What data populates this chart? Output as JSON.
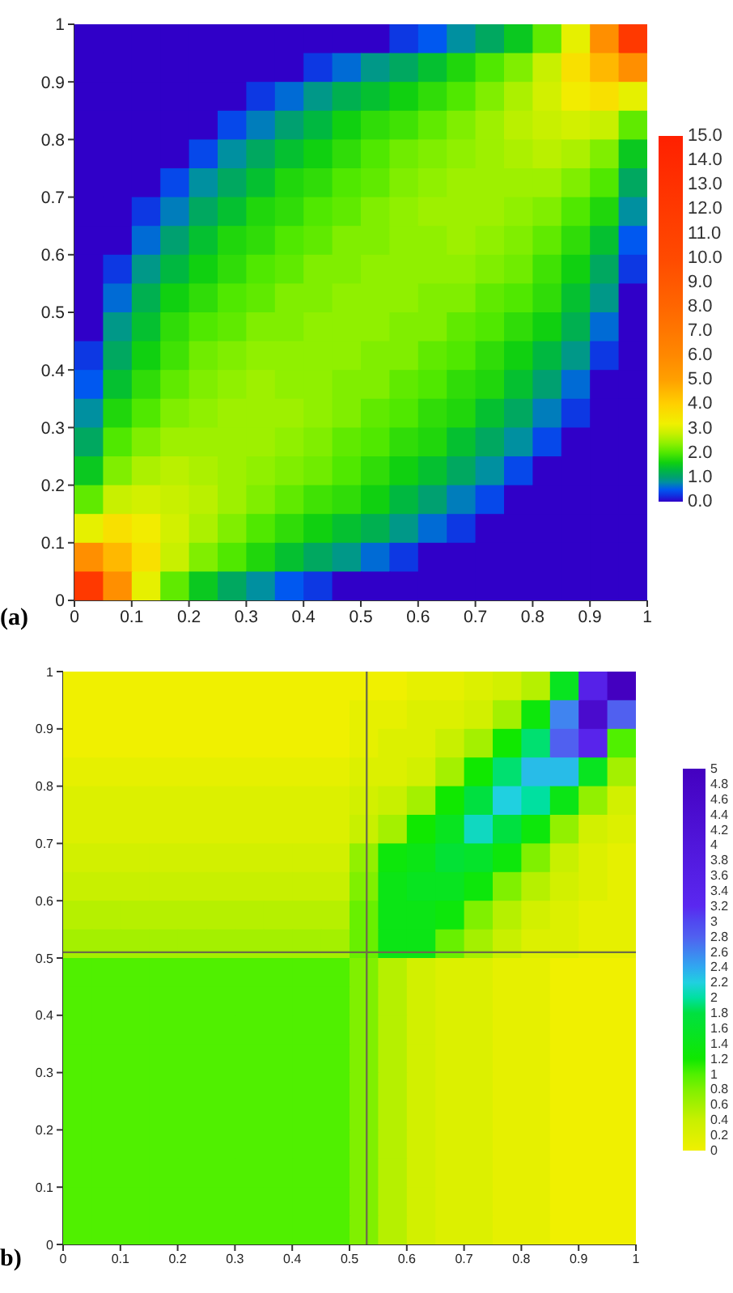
{
  "chart_data": [
    {
      "type": "heatmap",
      "annotations": [
        "(a)"
      ],
      "xlim": [
        0,
        1
      ],
      "ylim": [
        0,
        1
      ],
      "xticks": [
        0,
        0.1,
        0.2,
        0.3,
        0.4,
        0.5,
        0.6,
        0.7,
        0.8,
        0.9,
        1
      ],
      "yticks": [
        0,
        0.1,
        0.2,
        0.3,
        0.4,
        0.5,
        0.6,
        0.7,
        0.8,
        0.9,
        1
      ],
      "clim": [
        0,
        15
      ],
      "cticks": [
        {
          "value": 0,
          "label": "0.0"
        },
        {
          "value": 1,
          "label": "1.0"
        },
        {
          "value": 2,
          "label": "2.0"
        },
        {
          "value": 3,
          "label": "3.0"
        },
        {
          "value": 4,
          "label": "4.0"
        },
        {
          "value": 5,
          "label": "5.0"
        },
        {
          "value": 6,
          "label": "6.0"
        },
        {
          "value": 7,
          "label": "7.0"
        },
        {
          "value": 8,
          "label": "8.0"
        },
        {
          "value": 9,
          "label": "9.0"
        },
        {
          "value": 10,
          "label": "10.0"
        },
        {
          "value": 11,
          "label": "11.0"
        },
        {
          "value": 12,
          "label": "12.0"
        },
        {
          "value": 13,
          "label": "13.0"
        },
        {
          "value": 14,
          "label": "14.0"
        },
        {
          "value": 15,
          "label": "15.0"
        }
      ],
      "cells": [
        [
          0,
          0,
          0,
          0,
          0,
          0,
          0,
          0,
          0,
          0,
          0,
          0.3,
          0.5,
          0.8,
          1.1,
          1.5,
          2.1,
          3.1,
          5.7,
          12
        ],
        [
          0,
          0,
          0,
          0,
          0,
          0,
          0,
          0,
          0.3,
          0.6,
          0.9,
          1.1,
          1.4,
          1.7,
          2.0,
          2.3,
          2.8,
          3.6,
          4.5,
          5.7
        ],
        [
          0,
          0,
          0,
          0,
          0,
          0,
          0.3,
          0.6,
          0.9,
          1.2,
          1.4,
          1.6,
          1.8,
          2.0,
          2.3,
          2.6,
          2.9,
          3.3,
          3.6,
          3.1
        ],
        [
          0,
          0,
          0,
          0,
          0,
          0.4,
          0.7,
          1.0,
          1.3,
          1.6,
          1.8,
          1.9,
          2.1,
          2.3,
          2.5,
          2.7,
          2.8,
          2.9,
          2.8,
          2.1
        ],
        [
          0,
          0,
          0,
          0,
          0.4,
          0.8,
          1.1,
          1.4,
          1.6,
          1.8,
          2.0,
          2.2,
          2.3,
          2.4,
          2.5,
          2.6,
          2.7,
          2.6,
          2.3,
          1.5
        ],
        [
          0,
          0,
          0,
          0.4,
          0.8,
          1.1,
          1.4,
          1.7,
          1.8,
          2.0,
          2.1,
          2.3,
          2.4,
          2.5,
          2.5,
          2.5,
          2.5,
          2.3,
          2.0,
          1.1
        ],
        [
          0,
          0,
          0.3,
          0.7,
          1.1,
          1.4,
          1.7,
          1.8,
          2.0,
          2.1,
          2.3,
          2.4,
          2.5,
          2.5,
          2.5,
          2.4,
          2.3,
          2.0,
          1.7,
          0.8
        ],
        [
          0,
          0,
          0.6,
          1.0,
          1.4,
          1.7,
          1.8,
          2.0,
          2.1,
          2.3,
          2.3,
          2.4,
          2.4,
          2.5,
          2.4,
          2.3,
          2.1,
          1.8,
          1.4,
          0.5
        ],
        [
          0,
          0.3,
          0.9,
          1.3,
          1.6,
          1.8,
          2.0,
          2.1,
          2.3,
          2.3,
          2.4,
          2.4,
          2.4,
          2.4,
          2.3,
          2.2,
          1.9,
          1.6,
          1.1,
          0.3
        ],
        [
          0,
          0.6,
          1.2,
          1.6,
          1.8,
          2.0,
          2.1,
          2.3,
          2.3,
          2.4,
          2.4,
          2.4,
          2.3,
          2.3,
          2.1,
          2.0,
          1.8,
          1.4,
          0.9,
          0
        ],
        [
          0,
          0.9,
          1.4,
          1.8,
          2.0,
          2.1,
          2.3,
          2.3,
          2.4,
          2.4,
          2.4,
          2.3,
          2.3,
          2.1,
          2.0,
          1.8,
          1.6,
          1.2,
          0.6,
          0
        ],
        [
          0.3,
          1.1,
          1.6,
          1.9,
          2.2,
          2.3,
          2.4,
          2.4,
          2.4,
          2.4,
          2.3,
          2.3,
          2.1,
          2.0,
          1.8,
          1.6,
          1.3,
          0.9,
          0.3,
          0
        ],
        [
          0.5,
          1.4,
          1.8,
          2.1,
          2.3,
          2.4,
          2.5,
          2.4,
          2.4,
          2.3,
          2.3,
          2.1,
          2.0,
          1.8,
          1.7,
          1.4,
          1.0,
          0.6,
          0,
          0
        ],
        [
          0.8,
          1.7,
          2.0,
          2.3,
          2.4,
          2.5,
          2.5,
          2.5,
          2.4,
          2.3,
          2.1,
          2.0,
          1.8,
          1.7,
          1.4,
          1.1,
          0.7,
          0.3,
          0,
          0
        ],
        [
          1.1,
          2.0,
          2.3,
          2.5,
          2.5,
          2.5,
          2.5,
          2.4,
          2.3,
          2.1,
          2.0,
          1.8,
          1.7,
          1.4,
          1.1,
          0.8,
          0.4,
          0,
          0,
          0
        ],
        [
          1.5,
          2.3,
          2.6,
          2.7,
          2.6,
          2.5,
          2.4,
          2.3,
          2.2,
          2.0,
          1.8,
          1.6,
          1.4,
          1.1,
          0.8,
          0.4,
          0,
          0,
          0,
          0
        ],
        [
          2.1,
          2.8,
          2.9,
          2.8,
          2.7,
          2.5,
          2.3,
          2.1,
          1.9,
          1.8,
          1.6,
          1.3,
          1.0,
          0.7,
          0.4,
          0,
          0,
          0,
          0,
          0
        ],
        [
          3.1,
          3.6,
          3.3,
          2.9,
          2.6,
          2.3,
          2.0,
          1.8,
          1.6,
          1.4,
          1.2,
          0.9,
          0.6,
          0.3,
          0,
          0,
          0,
          0,
          0,
          0
        ],
        [
          5.7,
          4.5,
          3.6,
          2.8,
          2.3,
          2.0,
          1.7,
          1.4,
          1.1,
          0.9,
          0.6,
          0.3,
          0,
          0,
          0,
          0,
          0,
          0,
          0,
          0
        ],
        [
          12,
          5.7,
          3.1,
          2.1,
          1.5,
          1.1,
          0.8,
          0.5,
          0.3,
          0,
          0,
          0,
          0,
          0,
          0,
          0,
          0,
          0,
          0,
          0
        ]
      ]
    },
    {
      "type": "heatmap",
      "annotations": [
        "b)"
      ],
      "xlim": [
        0,
        1
      ],
      "ylim": [
        0,
        1
      ],
      "xticks": [
        0,
        0.1,
        0.2,
        0.3,
        0.4,
        0.5,
        0.6,
        0.7,
        0.8,
        0.9,
        1
      ],
      "yticks": [
        0,
        0.1,
        0.2,
        0.3,
        0.4,
        0.5,
        0.6,
        0.7,
        0.8,
        0.9,
        1
      ],
      "clim": [
        0,
        5
      ],
      "cticks": [
        0,
        0.2,
        0.4,
        0.6,
        0.8,
        1,
        1.2,
        1.4,
        1.6,
        1.8,
        2,
        2.2,
        2.4,
        2.6,
        2.8,
        3,
        3.2,
        3.4,
        3.6,
        3.8,
        4,
        4.2,
        4.4,
        4.6,
        4.8,
        5
      ],
      "ref_lines": [
        {
          "axis": "x",
          "value": 0.53,
          "color": "#6e6e48"
        },
        {
          "axis": "y",
          "value": 0.51,
          "color": "#6e6e48"
        }
      ],
      "cells": [
        [
          0,
          0,
          0,
          0,
          0,
          0,
          0,
          0,
          0,
          0,
          0,
          0,
          0.1,
          0.1,
          0.2,
          0.3,
          0.5,
          1.5,
          3.5,
          5
        ],
        [
          0,
          0,
          0,
          0,
          0,
          0,
          0,
          0,
          0,
          0,
          0.1,
          0.1,
          0.2,
          0.2,
          0.3,
          0.6,
          1.3,
          2.6,
          4.5,
          2.8
        ],
        [
          0,
          0,
          0,
          0,
          0,
          0,
          0,
          0,
          0,
          0,
          0.1,
          0.2,
          0.2,
          0.4,
          0.6,
          1.2,
          1.9,
          2.8,
          3.4,
          1
        ],
        [
          0.1,
          0.1,
          0.1,
          0.1,
          0.1,
          0.1,
          0.1,
          0.1,
          0.1,
          0.1,
          0.2,
          0.2,
          0.3,
          0.6,
          1.2,
          1.9,
          2.3,
          2.3,
          1.5,
          0.6
        ],
        [
          0.2,
          0.2,
          0.2,
          0.2,
          0.2,
          0.2,
          0.2,
          0.2,
          0.2,
          0.2,
          0.3,
          0.4,
          0.6,
          1.2,
          1.8,
          2.2,
          2,
          1.4,
          0.7,
          0.3
        ],
        [
          0.2,
          0.2,
          0.2,
          0.2,
          0.2,
          0.2,
          0.2,
          0.2,
          0.2,
          0.2,
          0.4,
          0.6,
          1.2,
          1.5,
          2.1,
          1.8,
          1.3,
          0.7,
          0.3,
          0.2
        ],
        [
          0.3,
          0.3,
          0.3,
          0.3,
          0.3,
          0.3,
          0.3,
          0.3,
          0.3,
          0.3,
          0.7,
          1.3,
          1.4,
          1.7,
          1.6,
          1.3,
          0.8,
          0.4,
          0.2,
          0.1
        ],
        [
          0.4,
          0.4,
          0.4,
          0.4,
          0.4,
          0.4,
          0.4,
          0.4,
          0.4,
          0.4,
          0.8,
          1.4,
          1.5,
          1.5,
          1.3,
          0.8,
          0.5,
          0.3,
          0.2,
          0.1
        ],
        [
          0.5,
          0.5,
          0.5,
          0.5,
          0.5,
          0.5,
          0.5,
          0.5,
          0.5,
          0.5,
          0.9,
          1.4,
          1.4,
          1.3,
          0.8,
          0.5,
          0.3,
          0.2,
          0.1,
          0.1
        ],
        [
          0.6,
          0.6,
          0.6,
          0.6,
          0.6,
          0.6,
          0.6,
          0.6,
          0.6,
          0.6,
          0.9,
          1.4,
          1.4,
          0.9,
          0.6,
          0.4,
          0.2,
          0.2,
          0.1,
          0.1
        ],
        [
          1,
          1,
          1,
          1,
          1,
          1,
          1,
          1,
          1,
          1,
          0.8,
          0.5,
          0.3,
          0.2,
          0.2,
          0.1,
          0.1,
          0,
          0,
          0
        ],
        [
          1,
          1,
          1,
          1,
          1,
          1,
          1,
          1,
          1,
          1,
          0.8,
          0.5,
          0.3,
          0.2,
          0.2,
          0.1,
          0.1,
          0,
          0,
          0
        ],
        [
          1,
          1,
          1,
          1,
          1,
          1,
          1,
          1,
          1,
          1,
          0.8,
          0.5,
          0.3,
          0.2,
          0.2,
          0.1,
          0.1,
          0,
          0,
          0
        ],
        [
          1,
          1,
          1,
          1,
          1,
          1,
          1,
          1,
          1,
          1,
          0.8,
          0.5,
          0.3,
          0.2,
          0.2,
          0.1,
          0.1,
          0,
          0,
          0
        ],
        [
          1,
          1,
          1,
          1,
          1,
          1,
          1,
          1,
          1,
          1,
          0.8,
          0.5,
          0.3,
          0.2,
          0.2,
          0.1,
          0.1,
          0,
          0,
          0
        ],
        [
          1,
          1,
          1,
          1,
          1,
          1,
          1,
          1,
          1,
          1,
          0.8,
          0.5,
          0.3,
          0.2,
          0.2,
          0.1,
          0.1,
          0,
          0,
          0
        ],
        [
          1,
          1,
          1,
          1,
          1,
          1,
          1,
          1,
          1,
          1,
          0.8,
          0.5,
          0.3,
          0.2,
          0.2,
          0.1,
          0.1,
          0,
          0,
          0
        ],
        [
          1,
          1,
          1,
          1,
          1,
          1,
          1,
          1,
          1,
          1,
          0.8,
          0.5,
          0.3,
          0.2,
          0.2,
          0.1,
          0.1,
          0,
          0,
          0
        ],
        [
          1,
          1,
          1,
          1,
          1,
          1,
          1,
          1,
          1,
          1,
          0.8,
          0.5,
          0.3,
          0.2,
          0.2,
          0.1,
          0.1,
          0,
          0,
          0
        ],
        [
          1,
          1,
          1,
          1,
          1,
          1,
          1,
          1,
          1,
          1,
          0.8,
          0.5,
          0.3,
          0.2,
          0.2,
          0.1,
          0.1,
          0,
          0,
          0
        ]
      ]
    }
  ]
}
